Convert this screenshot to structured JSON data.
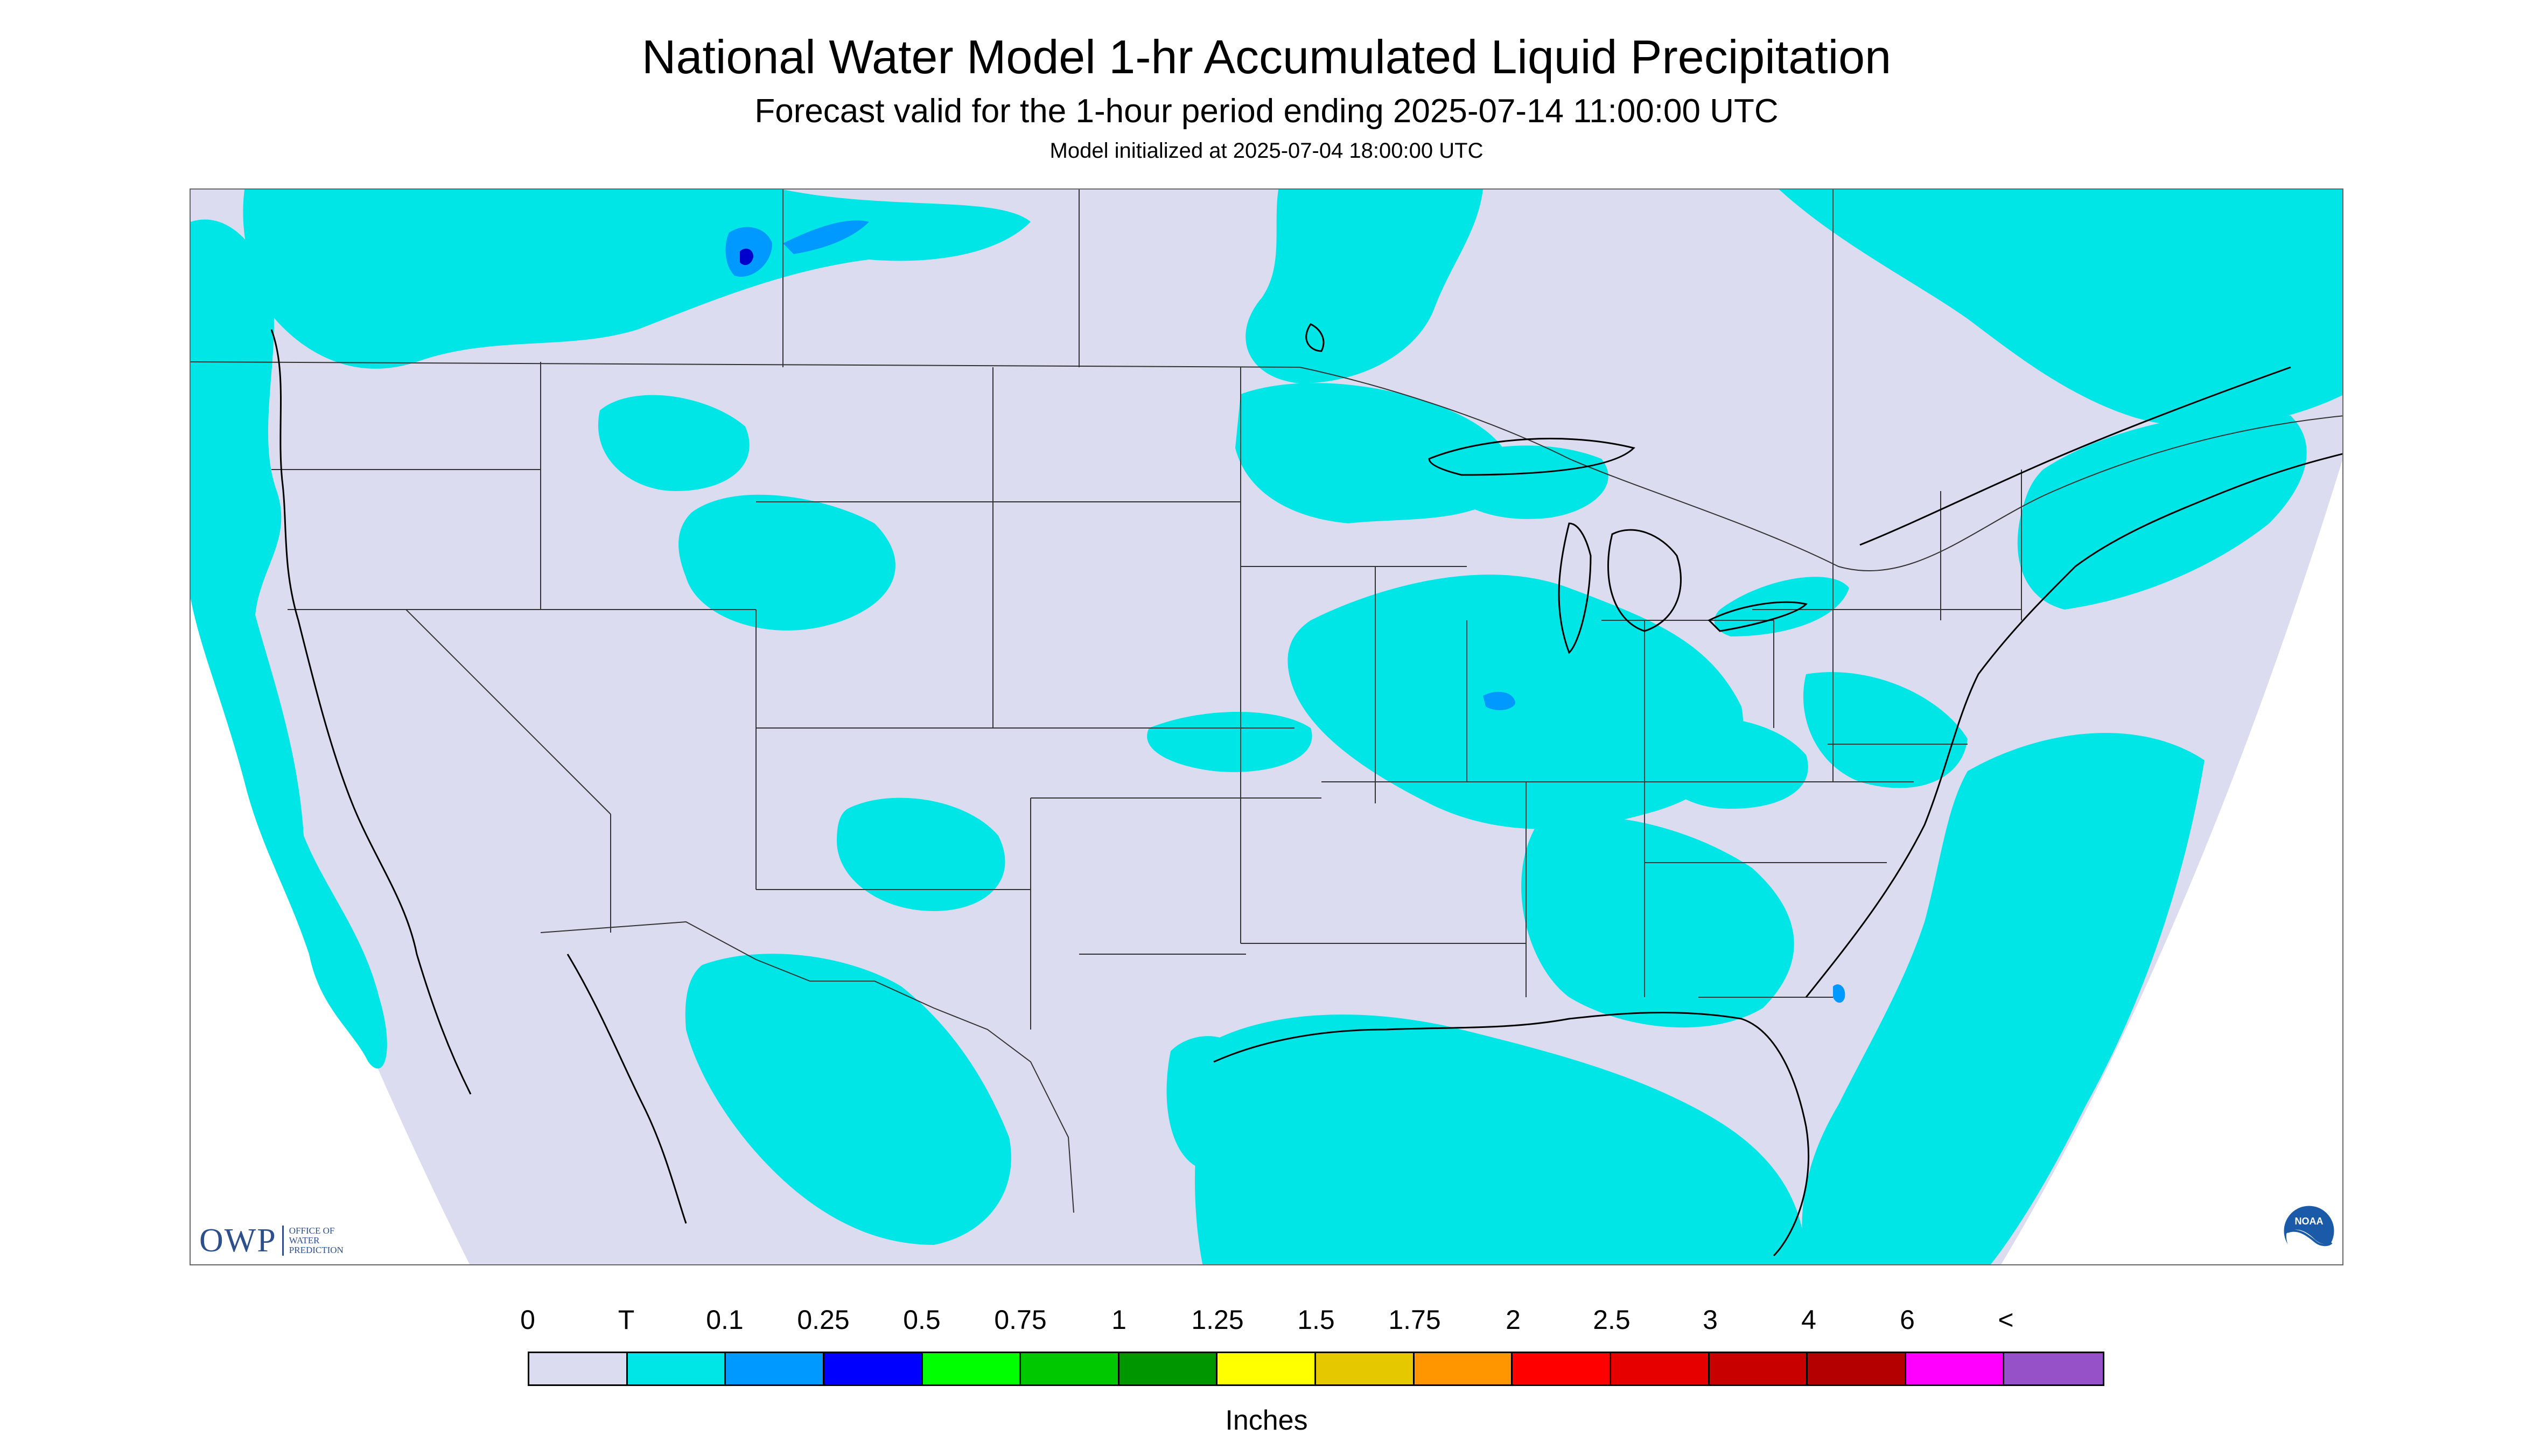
{
  "header": {
    "title": "National Water Model 1-hr Accumulated Liquid Precipitation",
    "subtitle": "Forecast valid for the 1-hour period ending 2025-07-14 11:00:00 UTC",
    "init": "Model initialized at 2025-07-04 18:00:00 UTC"
  },
  "map": {
    "background_color": "#dcdcf0",
    "trace_color": "#00e6e6",
    "light_blue_color": "#0099ff"
  },
  "logos": {
    "owp_text": "OWP",
    "owp_sub_1": "OFFICE OF",
    "owp_sub_2": "WATER",
    "owp_sub_3": "PREDICTION",
    "noaa_text": "NOAA"
  },
  "legend": {
    "labels": [
      "0",
      "T",
      "0.1",
      "0.25",
      "0.5",
      "0.75",
      "1",
      "1.25",
      "1.5",
      "1.75",
      "2",
      "2.5",
      "3",
      "4",
      "6",
      "<"
    ],
    "colors": [
      "#dcdcf0",
      "#00e6e6",
      "#0099ff",
      "#0000ff",
      "#00ff00",
      "#00c800",
      "#009600",
      "#ffff00",
      "#e6c800",
      "#ff9600",
      "#ff0000",
      "#e60000",
      "#c80000",
      "#b40000",
      "#ff00ff",
      "#9650c8"
    ],
    "units": "Inches"
  }
}
